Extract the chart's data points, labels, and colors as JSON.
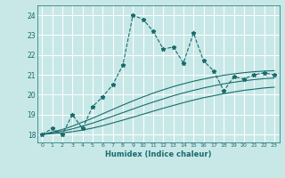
{
  "xlabel": "Humidex (Indice chaleur)",
  "background_color": "#c8e8e8",
  "grid_color": "#ffffff",
  "line_color": "#1a6b6b",
  "ylim": [
    17.6,
    24.5
  ],
  "xlim": [
    -0.5,
    23.5
  ],
  "yticks": [
    18,
    19,
    20,
    21,
    22,
    23,
    24
  ],
  "xticks": [
    0,
    1,
    2,
    3,
    4,
    5,
    6,
    7,
    8,
    9,
    10,
    11,
    12,
    13,
    14,
    15,
    16,
    17,
    18,
    19,
    20,
    21,
    22,
    23
  ],
  "main_series": [
    18.0,
    18.3,
    18.0,
    19.0,
    18.3,
    19.4,
    19.9,
    20.5,
    21.5,
    24.0,
    23.8,
    23.2,
    22.3,
    22.4,
    21.6,
    23.1,
    21.7,
    21.2,
    20.2,
    20.9,
    20.8,
    21.0,
    21.1,
    21.0
  ],
  "line1": [
    18.0,
    18.04,
    18.08,
    18.14,
    18.22,
    18.32,
    18.44,
    18.58,
    18.72,
    18.87,
    19.02,
    19.17,
    19.32,
    19.46,
    19.6,
    19.73,
    19.85,
    19.95,
    20.05,
    20.14,
    20.22,
    20.28,
    20.34,
    20.38
  ],
  "line2": [
    18.0,
    18.08,
    18.17,
    18.28,
    18.42,
    18.57,
    18.74,
    18.92,
    19.1,
    19.28,
    19.46,
    19.63,
    19.79,
    19.95,
    20.09,
    20.22,
    20.34,
    20.45,
    20.55,
    20.63,
    20.7,
    20.76,
    20.81,
    20.84
  ],
  "line3": [
    18.0,
    18.12,
    18.25,
    18.42,
    18.62,
    18.82,
    19.04,
    19.26,
    19.48,
    19.69,
    19.89,
    20.08,
    20.25,
    20.41,
    20.55,
    20.68,
    20.79,
    20.89,
    20.98,
    21.05,
    21.11,
    21.16,
    21.19,
    21.21
  ]
}
